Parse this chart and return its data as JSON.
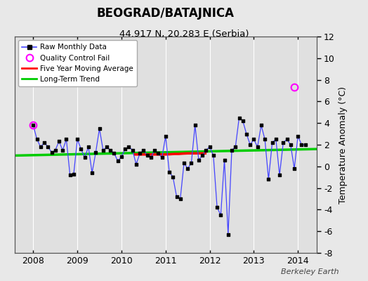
{
  "title": "BEOGRAD/BATAJNICA",
  "subtitle": "44.917 N, 20.283 E (Serbia)",
  "ylabel_right": "Temperature Anomaly (°C)",
  "watermark": "Berkeley Earth",
  "ylim": [
    -8,
    12
  ],
  "yticks": [
    -8,
    -6,
    -4,
    -2,
    0,
    2,
    4,
    6,
    8,
    10,
    12
  ],
  "xlim_start": 2007.58,
  "xlim_end": 2014.42,
  "xticks": [
    2008,
    2009,
    2010,
    2011,
    2012,
    2013,
    2014
  ],
  "bg_color": "#e8e8e8",
  "plot_bg_color": "#e0e0e0",
  "grid_color": "#ffffff",
  "line_color": "#4444ff",
  "dot_color": "#000000",
  "qc_color": "#ff00ff",
  "moving_avg_color": "#ff0000",
  "trend_color": "#00cc00",
  "raw_monthly_data": [
    [
      2008.0,
      3.8
    ],
    [
      2008.083,
      2.5
    ],
    [
      2008.167,
      1.8
    ],
    [
      2008.25,
      2.2
    ],
    [
      2008.333,
      1.8
    ],
    [
      2008.417,
      1.3
    ],
    [
      2008.5,
      1.5
    ],
    [
      2008.583,
      2.3
    ],
    [
      2008.667,
      1.5
    ],
    [
      2008.75,
      2.5
    ],
    [
      2008.833,
      -0.8
    ],
    [
      2008.917,
      -0.7
    ],
    [
      2009.0,
      2.5
    ],
    [
      2009.083,
      1.6
    ],
    [
      2009.167,
      0.8
    ],
    [
      2009.25,
      1.8
    ],
    [
      2009.333,
      -0.6
    ],
    [
      2009.417,
      1.3
    ],
    [
      2009.5,
      3.5
    ],
    [
      2009.583,
      1.5
    ],
    [
      2009.667,
      1.8
    ],
    [
      2009.75,
      1.5
    ],
    [
      2009.833,
      1.2
    ],
    [
      2009.917,
      0.5
    ],
    [
      2010.0,
      0.9
    ],
    [
      2010.083,
      1.6
    ],
    [
      2010.167,
      1.8
    ],
    [
      2010.25,
      1.5
    ],
    [
      2010.333,
      0.2
    ],
    [
      2010.417,
      1.2
    ],
    [
      2010.5,
      1.5
    ],
    [
      2010.583,
      1.0
    ],
    [
      2010.667,
      0.8
    ],
    [
      2010.75,
      1.5
    ],
    [
      2010.833,
      1.2
    ],
    [
      2010.917,
      0.8
    ],
    [
      2011.0,
      2.8
    ],
    [
      2011.083,
      -0.5
    ],
    [
      2011.167,
      -1.0
    ],
    [
      2011.25,
      -2.8
    ],
    [
      2011.333,
      -3.0
    ],
    [
      2011.417,
      0.3
    ],
    [
      2011.5,
      -0.2
    ],
    [
      2011.583,
      0.3
    ],
    [
      2011.667,
      3.8
    ],
    [
      2011.75,
      0.6
    ],
    [
      2011.833,
      1.0
    ],
    [
      2011.917,
      1.5
    ],
    [
      2012.0,
      1.8
    ],
    [
      2012.083,
      1.0
    ],
    [
      2012.167,
      -3.8
    ],
    [
      2012.25,
      -4.5
    ],
    [
      2012.333,
      0.6
    ],
    [
      2012.417,
      -6.3
    ],
    [
      2012.5,
      1.5
    ],
    [
      2012.583,
      1.8
    ],
    [
      2012.667,
      4.5
    ],
    [
      2012.75,
      4.2
    ],
    [
      2012.833,
      3.0
    ],
    [
      2012.917,
      2.0
    ],
    [
      2013.0,
      2.5
    ],
    [
      2013.083,
      1.8
    ],
    [
      2013.167,
      3.8
    ],
    [
      2013.25,
      2.5
    ],
    [
      2013.333,
      -1.2
    ],
    [
      2013.417,
      2.2
    ],
    [
      2013.5,
      2.5
    ],
    [
      2013.583,
      -0.8
    ],
    [
      2013.667,
      2.2
    ],
    [
      2013.75,
      2.5
    ],
    [
      2013.833,
      2.0
    ],
    [
      2013.917,
      -0.2
    ],
    [
      2014.0,
      2.8
    ],
    [
      2014.083,
      2.0
    ],
    [
      2014.167,
      2.0
    ]
  ],
  "qc_fail_points": [
    [
      2008.0,
      3.8
    ],
    [
      2013.917,
      7.3
    ]
  ],
  "moving_avg": [
    [
      2010.3,
      1.1
    ],
    [
      2010.4,
      1.1
    ],
    [
      2010.5,
      1.1
    ],
    [
      2010.6,
      1.1
    ],
    [
      2010.7,
      1.1
    ],
    [
      2010.8,
      1.1
    ],
    [
      2010.9,
      1.1
    ],
    [
      2011.0,
      1.1
    ],
    [
      2011.1,
      1.12
    ],
    [
      2011.2,
      1.15
    ],
    [
      2011.3,
      1.15
    ],
    [
      2011.4,
      1.18
    ],
    [
      2011.5,
      1.2
    ],
    [
      2011.6,
      1.2
    ],
    [
      2011.7,
      1.2
    ],
    [
      2011.8,
      1.2
    ],
    [
      2011.9,
      1.2
    ]
  ],
  "trend_x": [
    2007.58,
    2014.42
  ],
  "trend_y": [
    1.0,
    1.6
  ]
}
